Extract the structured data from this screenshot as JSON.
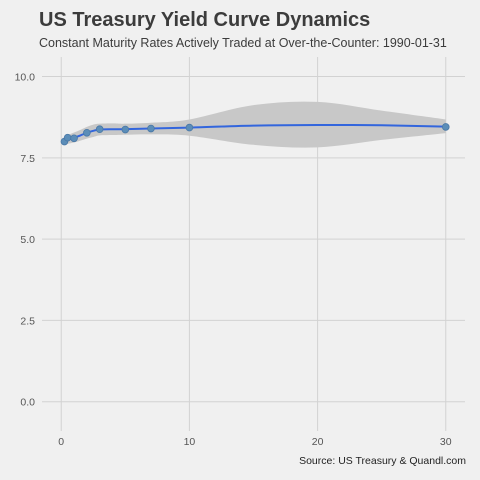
{
  "chart_data": {
    "type": "line",
    "title": "US Treasury Yield Curve Dynamics",
    "subtitle": "Constant Maturity Rates Actively Traded at Over-the-Counter: 1990-01-31",
    "caption": "Source: US Treasury & Quandl.com",
    "xlabel": "",
    "ylabel": "",
    "xlim": [
      -1.5,
      31.5
    ],
    "ylim": [
      -0.9,
      10.6
    ],
    "x_ticks": [
      0,
      10,
      20,
      30
    ],
    "x_tick_labels": [
      "0",
      "10",
      "20",
      "30"
    ],
    "y_ticks": [
      0.0,
      2.5,
      5.0,
      7.5,
      10.0
    ],
    "y_tick_labels": [
      "0.0",
      "2.5",
      "5.0",
      "7.5",
      "10.0"
    ],
    "grid": true,
    "series": [
      {
        "kind": "points",
        "color": "#5b8db8",
        "x": [
          0.25,
          0.5,
          1,
          2,
          3,
          5,
          7,
          10,
          30
        ],
        "y": [
          8.0,
          8.12,
          8.1,
          8.27,
          8.38,
          8.37,
          8.4,
          8.43,
          8.45
        ]
      },
      {
        "kind": "smooth-line",
        "color": "#3366dd",
        "x": [
          0.25,
          0.5,
          1,
          1.5,
          2,
          2.5,
          3,
          4,
          5,
          7,
          10,
          15,
          20,
          25,
          30
        ],
        "y": [
          8.02,
          8.06,
          8.12,
          8.19,
          8.27,
          8.33,
          8.37,
          8.38,
          8.38,
          8.4,
          8.43,
          8.49,
          8.51,
          8.5,
          8.46
        ],
        "band_upper": [
          8.15,
          8.2,
          8.28,
          8.36,
          8.45,
          8.52,
          8.55,
          8.56,
          8.55,
          8.58,
          8.68,
          9.12,
          9.22,
          8.95,
          8.68
        ],
        "band_lower": [
          7.9,
          7.93,
          7.97,
          8.03,
          8.09,
          8.14,
          8.19,
          8.2,
          8.21,
          8.22,
          8.18,
          7.9,
          7.82,
          8.05,
          8.26
        ]
      }
    ],
    "colors": {
      "background": "#f0f0f0",
      "grid": "#d2d2d2",
      "band": "#c8c8c8",
      "line": "#3366dd",
      "points": "#5b8db8"
    }
  }
}
